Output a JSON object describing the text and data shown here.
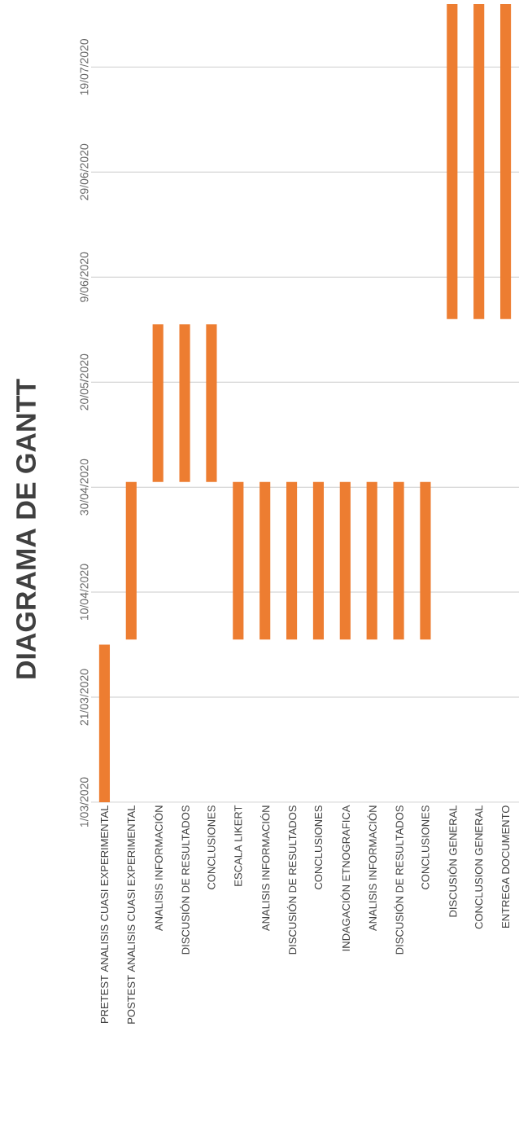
{
  "chart_data": {
    "type": "bar",
    "title": "DIAGRAMA DE GANTT",
    "categories": [
      "PRETEST ANALISIS CUASI EXPERIMENTAL",
      "POSTEST ANALISIS CUASI EXPERIMENTAL",
      "ANALISIS INFORMACIÓN",
      "DISCUSIÓN DE RESULTADOS",
      "CONCLUSIONES",
      "ESCALA LIKERT",
      "ANALISIS INFORMACIÓN",
      "DISCUSIÓN DE RESULTADOS",
      "CONCLUSIONES",
      "INDAGACIÓN ETNOGRAFICA",
      "ANALISIS INFORMACIÓN",
      "DISCUSIÓN DE RESULTADOS",
      "CONCLUSIONES",
      "DISCUSIÓN GENERAL",
      "CONCLUSION GENERAL",
      "ENTREGA DOCUMENTO"
    ],
    "base": [
      18322,
      18353,
      18383,
      18383,
      18383,
      18353,
      18353,
      18353,
      18353,
      18353,
      18353,
      18353,
      18353,
      18414,
      18414,
      18414
    ],
    "values": [
      30,
      30,
      30,
      30,
      30,
      30,
      30,
      30,
      30,
      30,
      30,
      30,
      30,
      60,
      60,
      60
    ],
    "color": "#ed7d31",
    "ylim": [
      "2020-03-01",
      "2020-07-31"
    ],
    "yticks": [
      {
        "value": "2020-03-01",
        "label": "1/03/2020"
      },
      {
        "value": "2020-03-21",
        "label": "21/03/2020"
      },
      {
        "value": "2020-04-10",
        "label": "10/04/2020"
      },
      {
        "value": "2020-04-30",
        "label": "30/04/2020"
      },
      {
        "value": "2020-05-20",
        "label": "20/05/2020"
      },
      {
        "value": "2020-06-09",
        "label": "9/06/2020"
      },
      {
        "value": "2020-06-29",
        "label": "29/06/2020"
      },
      {
        "value": "2020-07-19",
        "label": "19/07/2020"
      }
    ],
    "grid": "y"
  }
}
